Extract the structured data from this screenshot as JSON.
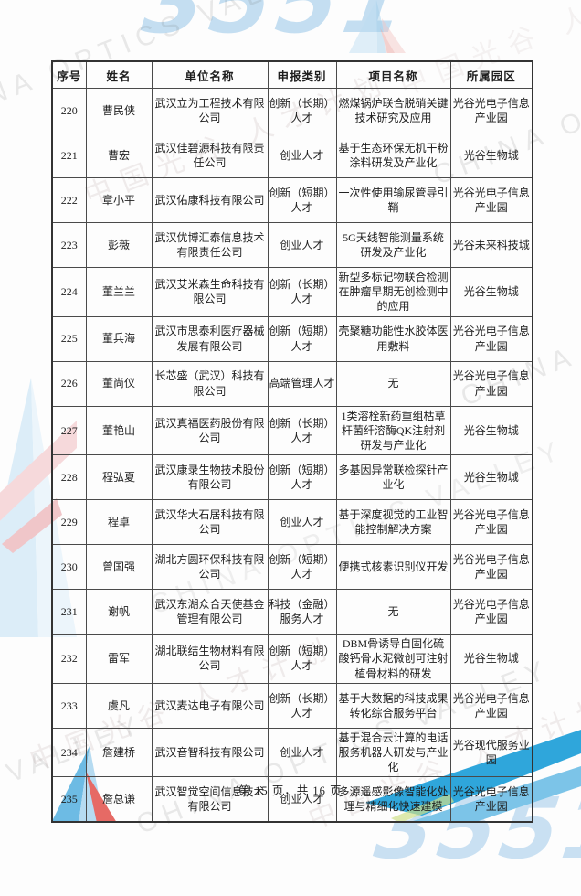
{
  "watermark": {
    "brand": "3551",
    "en_text": "CHINA OPTICS VALLEY",
    "cn_text": "中国光谷  人才计划",
    "colors": {
      "light_blue": "#9ec9ea",
      "logo_blue": "#3aa7de",
      "logo_red": "#e2514b",
      "swoosh_blue": "#2fa6db",
      "gray_text": "#d9d9d9"
    }
  },
  "table": {
    "headers": [
      "序号",
      "姓名",
      "单位名称",
      "申报类别",
      "项目名称",
      "所属园区"
    ],
    "rows": [
      [
        "220",
        "曹民侠",
        "武汉立为工程技术有限公司",
        "创新（长期）人才",
        "燃煤锅炉联合脱硝关键技术研究及应用",
        "光谷光电子信息产业园"
      ],
      [
        "221",
        "曹宏",
        "武汉佳碧源科技有限责任公司",
        "创业人才",
        "基于生态环保无机干粉涂料研发及产业化",
        "光谷生物城"
      ],
      [
        "222",
        "章小平",
        "武汉佑康科技有限公司",
        "创新（短期）人才",
        "一次性使用输尿管导引鞘",
        "光谷光电子信息产业园"
      ],
      [
        "223",
        "彭薇",
        "武汉优博汇泰信息技术有限责任公司",
        "创业人才",
        "5G天线智能测量系统研发及产业化",
        "光谷未来科技城"
      ],
      [
        "224",
        "董兰兰",
        "武汉艾米森生命科技有限公司",
        "创新（长期）人才",
        "新型多标记物联合检测在肿瘤早期无创检测中的应用",
        "光谷生物城"
      ],
      [
        "225",
        "董兵海",
        "武汉市思泰利医疗器械发展有限公司",
        "创新（短期）人才",
        "壳聚糖功能性水胶体医用敷料",
        "光谷光电子信息产业园"
      ],
      [
        "226",
        "董尚仪",
        "长芯盛（武汉）科技有限公司",
        "高端管理人才",
        "无",
        "光谷光电子信息产业园"
      ],
      [
        "227",
        "董艳山",
        "武汉真福医药股份有限公司",
        "创新（长期）人才",
        "1类溶栓新药重组枯草杆菌纤溶酶QK注射剂研发与产业化",
        "光谷生物城"
      ],
      [
        "228",
        "程弘夏",
        "武汉康录生物技术股份有限公司",
        "创新（短期）人才",
        "多基因异常联检探针产业化",
        "光谷生物城"
      ],
      [
        "229",
        "程卓",
        "武汉华大石居科技有限公司",
        "创业人才",
        "基于深度视觉的工业智能控制解决方案",
        "光谷光电子信息产业园"
      ],
      [
        "230",
        "曾国强",
        "湖北方圆环保科技有限公司",
        "创新（短期）人才",
        "便携式核素识别仪开发",
        "光谷光电子信息产业园"
      ],
      [
        "231",
        "谢帆",
        "武汉东湖众合天使基金管理有限公司",
        "科技（金融）服务人才",
        "无",
        "光谷光电子信息产业园"
      ],
      [
        "232",
        "雷军",
        "湖北联结生物材料有限公司",
        "创新（短期）人才",
        "DBM骨诱导自固化硫酸钙骨水泥微创可注射植骨材料的研发",
        "光谷生物城"
      ],
      [
        "233",
        "虞凡",
        "武汉麦达电子有限公司",
        "创新（长期）人才",
        "基于大数据的科技成果转化综合服务平台",
        "光谷光电子信息产业园"
      ],
      [
        "234",
        "詹建桥",
        "武汉音智科技有限公司",
        "创业人才",
        "基于混合云计算的电话服务机器人研发与产业化",
        "光谷现代服务业园"
      ],
      [
        "235",
        "詹总谦",
        "武汉智觉空间信息技术有限公司",
        "创业人才",
        "多源遥感影像智能化处理与精细化快速建模",
        "光谷光电子信息产业园"
      ]
    ]
  },
  "footer": {
    "page_info": "第 15 页，共 16 页"
  }
}
